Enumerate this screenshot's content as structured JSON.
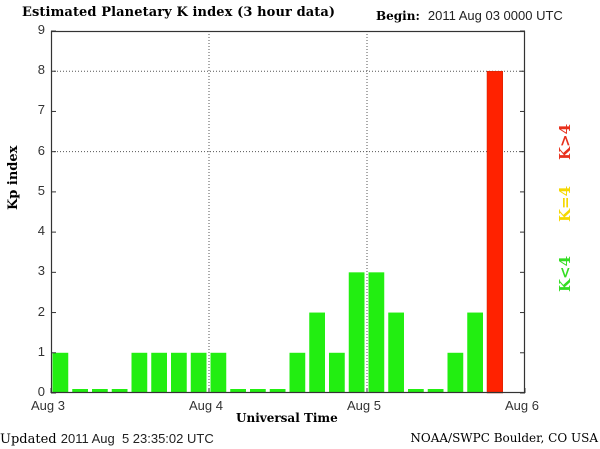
{
  "header": {
    "title": "Estimated Planetary K index (3 hour data)",
    "begin_label": "Begin:",
    "begin_value": "2011 Aug 03 0000 UTC"
  },
  "footer": {
    "updated_label": "Updated",
    "updated_value": "2011 Aug  5 23:35:02 UTC",
    "credit": "NOAA/SWPC Boulder, CO USA"
  },
  "legend": {
    "high": {
      "label": "K>4",
      "color": "#e8301c"
    },
    "mid": {
      "label": "K=4",
      "color": "#f5d800"
    },
    "low": {
      "label": "K<4",
      "color": "#33dd22"
    }
  },
  "colors": {
    "low": "#22ee11",
    "mid": "#ffee00",
    "high": "#ff2200",
    "frame": "#333333",
    "grid": "#555555"
  },
  "chart_data": {
    "type": "bar",
    "title": "Estimated Planetary K index (3 hour data)",
    "xlabel": "Universal Time",
    "ylabel": "Kp index",
    "ylim": [
      0,
      9
    ],
    "yticks": [
      0,
      1,
      2,
      3,
      4,
      5,
      6,
      7,
      8,
      9
    ],
    "xticks": [
      "Aug 3",
      "Aug 4",
      "Aug 5",
      "Aug 6"
    ],
    "grid": "dotted at y=6,8 and day boundaries",
    "categories": [
      "Aug 3 00",
      "Aug 3 03",
      "Aug 3 06",
      "Aug 3 09",
      "Aug 3 12",
      "Aug 3 15",
      "Aug 3 18",
      "Aug 3 21",
      "Aug 4 00",
      "Aug 4 03",
      "Aug 4 06",
      "Aug 4 09",
      "Aug 4 12",
      "Aug 4 15",
      "Aug 4 18",
      "Aug 4 21",
      "Aug 5 00",
      "Aug 5 03",
      "Aug 5 06",
      "Aug 5 09",
      "Aug 5 12",
      "Aug 5 15",
      "Aug 5 18",
      "Aug 5 21"
    ],
    "values": [
      1,
      0,
      0,
      0,
      1,
      1,
      1,
      1,
      1,
      0,
      0,
      0,
      1,
      2,
      1,
      3,
      3,
      2,
      0,
      0,
      1,
      2,
      8,
      null
    ],
    "legend": [
      "K<4 (green)",
      "K=4 (yellow)",
      "K>4 (red)"
    ]
  }
}
